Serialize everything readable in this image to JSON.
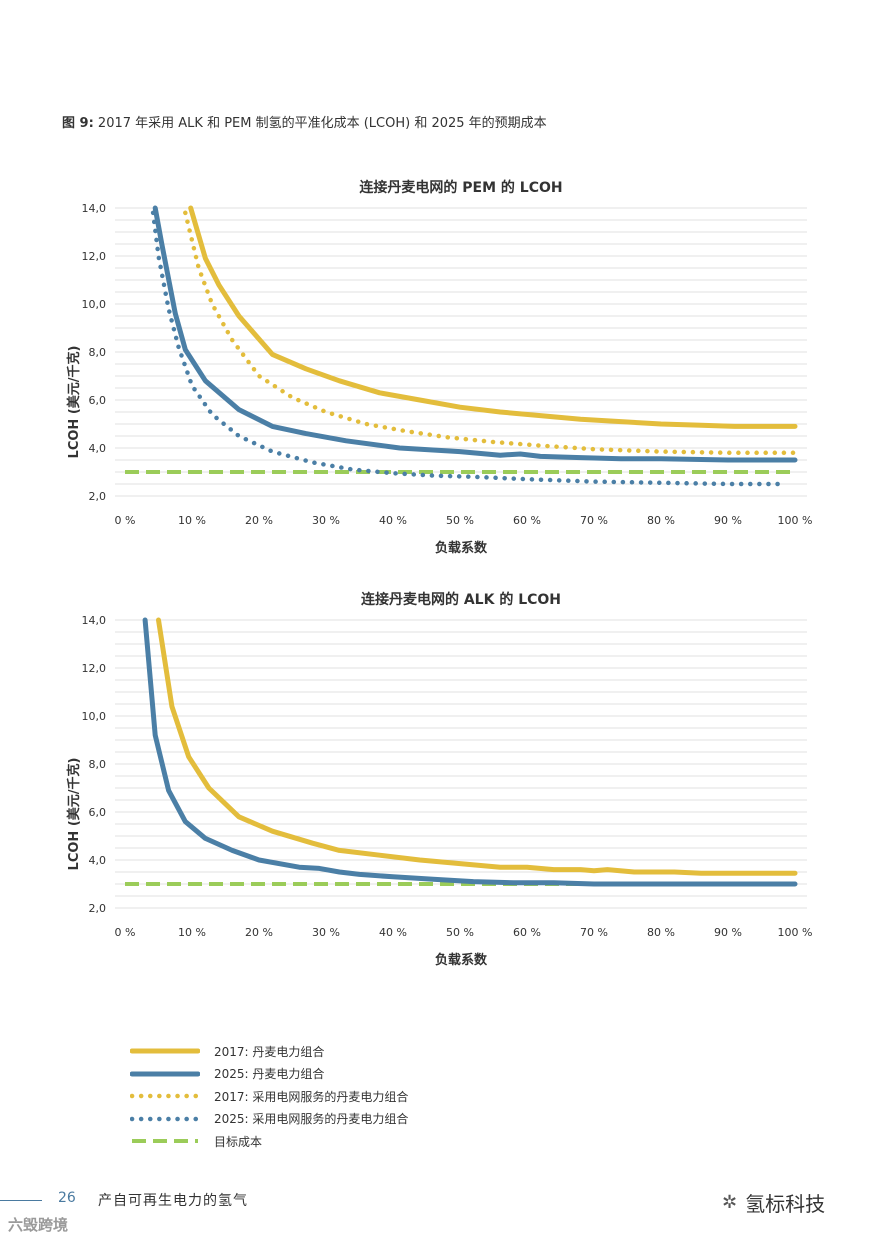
{
  "figure": {
    "label": "图 9:",
    "caption": "2017 年采用 ALK 和 PEM 制氢的平准化成本 (LCOH) 和 2025 年的预期成本"
  },
  "colors": {
    "y2017": "#e3bd3c",
    "y2025": "#4b7fa6",
    "target": "#9bcc59",
    "grid": "#e2e2e2"
  },
  "chart_data": [
    {
      "type": "line",
      "title": "连接丹麦电网的 PEM 的 LCOH",
      "xlabel": "负载系数",
      "ylabel": "LCOH (美元/千克)",
      "xlim": [
        0,
        100
      ],
      "ylim": [
        2.0,
        14.0
      ],
      "xticks": [
        "0 %",
        "10 %",
        "20 %",
        "30 %",
        "40 %",
        "50 %",
        "60 %",
        "70 %",
        "80 %",
        "90 %",
        "100 %"
      ],
      "yticks": [
        "14,0",
        "12,0",
        "10,0",
        "8,0",
        "6,0",
        "4,0",
        "2,0"
      ],
      "grid": true,
      "series": [
        {
          "name": "2017: 丹麦电力组合",
          "style": "solid",
          "color": "#e3bd3c",
          "x": [
            9.8,
            12,
            14,
            17,
            22,
            27,
            32,
            38,
            44,
            50,
            56,
            62,
            68,
            74,
            80,
            86,
            91,
            100
          ],
          "y": [
            14.0,
            11.9,
            10.8,
            9.5,
            7.9,
            7.3,
            6.8,
            6.3,
            6.0,
            5.7,
            5.5,
            5.35,
            5.2,
            5.1,
            5.0,
            4.95,
            4.9,
            4.9
          ]
        },
        {
          "name": "2025: 丹麦电力组合",
          "style": "solid",
          "color": "#4b7fa6",
          "x": [
            4.5,
            5.5,
            7.5,
            9,
            12,
            17,
            22,
            27,
            33,
            41,
            50,
            56,
            59,
            62,
            68,
            74,
            80,
            90,
            100
          ],
          "y": [
            14.0,
            12.5,
            9.6,
            8.1,
            6.8,
            5.6,
            4.9,
            4.6,
            4.3,
            4.0,
            3.85,
            3.7,
            3.75,
            3.65,
            3.6,
            3.55,
            3.55,
            3.5,
            3.5
          ]
        },
        {
          "name": "2017: 采用电网服务的丹麦电力组合",
          "style": "dotted",
          "color": "#e3bd3c",
          "x": [
            9.0,
            11,
            13,
            16,
            20,
            25,
            30,
            36,
            42,
            48,
            55,
            62,
            70,
            80,
            90,
            100
          ],
          "y": [
            13.8,
            11.5,
            10.0,
            8.5,
            7.0,
            6.1,
            5.5,
            5.0,
            4.7,
            4.45,
            4.25,
            4.1,
            3.95,
            3.85,
            3.8,
            3.8
          ]
        },
        {
          "name": "2025: 采用电网服务的丹麦电力组合",
          "style": "dotted",
          "color": "#4b7fa6",
          "x": [
            4.2,
            5.0,
            6.5,
            8,
            10,
            13,
            17,
            22,
            28,
            34,
            40,
            46,
            52,
            60,
            70,
            80,
            90,
            98
          ],
          "y": [
            13.8,
            12.0,
            9.8,
            8.2,
            6.6,
            5.4,
            4.5,
            3.85,
            3.4,
            3.1,
            2.95,
            2.85,
            2.8,
            2.7,
            2.6,
            2.55,
            2.5,
            2.5
          ]
        },
        {
          "name": "目标成本",
          "style": "dashed",
          "color": "#9bcc59",
          "x": [
            0,
            100
          ],
          "y": [
            3.0,
            3.0
          ]
        }
      ]
    },
    {
      "type": "line",
      "title": "连接丹麦电网的 ALK 的 LCOH",
      "xlabel": "负载系数",
      "ylabel": "LCOH (美元/千克)",
      "xlim": [
        0,
        100
      ],
      "ylim": [
        2.0,
        14.0
      ],
      "xticks": [
        "0 %",
        "10 %",
        "20 %",
        "30 %",
        "40 %",
        "50 %",
        "60 %",
        "70 %",
        "80 %",
        "90 %",
        "100 %"
      ],
      "yticks": [
        "14,0",
        "12,0",
        "10,0",
        "8,0",
        "6,0",
        "4,0",
        "2,0"
      ],
      "grid": true,
      "series": [
        {
          "name": "2017: 丹麦电力组合",
          "style": "solid",
          "color": "#e3bd3c",
          "x": [
            5.0,
            7,
            9.5,
            12.5,
            17,
            22,
            28,
            32,
            38,
            44,
            50,
            56,
            60,
            64,
            68,
            70,
            72,
            76,
            82,
            86,
            100
          ],
          "y": [
            14.0,
            10.4,
            8.3,
            7.0,
            5.8,
            5.2,
            4.7,
            4.4,
            4.2,
            4.0,
            3.85,
            3.7,
            3.7,
            3.6,
            3.6,
            3.55,
            3.6,
            3.5,
            3.5,
            3.45,
            3.45
          ]
        },
        {
          "name": "2025: 丹麦电力组合",
          "style": "solid",
          "color": "#4b7fa6",
          "x": [
            3.0,
            4.5,
            6.5,
            9,
            12,
            16,
            20,
            26,
            29,
            32,
            35,
            40,
            46,
            52,
            58,
            64,
            70,
            80,
            90,
            100
          ],
          "y": [
            14.0,
            9.2,
            6.9,
            5.6,
            4.9,
            4.4,
            4.0,
            3.7,
            3.65,
            3.5,
            3.4,
            3.3,
            3.2,
            3.1,
            3.05,
            3.05,
            3.0,
            3.0,
            3.0,
            3.0
          ]
        },
        {
          "name": "目标成本",
          "style": "dashed",
          "color": "#9bcc59",
          "x": [
            0,
            100
          ],
          "y": [
            3.0,
            3.0
          ]
        }
      ]
    }
  ],
  "legend": [
    {
      "label": "2017: 丹麦电力组合",
      "style": "solid",
      "color": "#e3bd3c"
    },
    {
      "label": "2025: 丹麦电力组合",
      "style": "solid",
      "color": "#4b7fa6"
    },
    {
      "label": "2017: 采用电网服务的丹麦电力组合",
      "style": "dotted",
      "color": "#e3bd3c"
    },
    {
      "label": "2025: 采用电网服务的丹麦电力组合",
      "style": "dotted",
      "color": "#4b7fa6"
    },
    {
      "label": "目标成本",
      "style": "dashed",
      "color": "#9bcc59"
    }
  ],
  "footer": {
    "page_number": "26",
    "doc_title": "产自可再生电力的氢气",
    "watermark_left": "六毁跨境",
    "watermark_right": "氢标科技",
    "watermark_icon": "wechat-icon"
  }
}
